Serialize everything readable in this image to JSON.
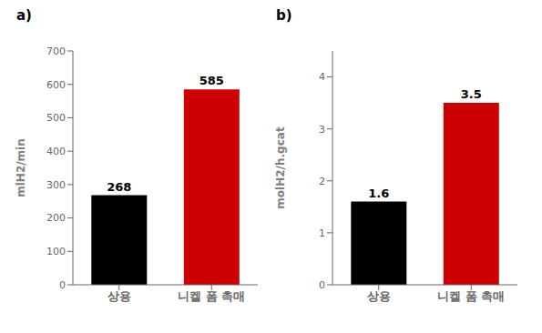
{
  "chart_data": [
    {
      "type": "bar",
      "title": "a)",
      "categories": [
        "상용",
        "니켈 폼 촉매"
      ],
      "values": [
        268,
        585
      ],
      "colors": [
        "#000000",
        "#cc0000"
      ],
      "ylabel": "mlH2/min",
      "ylim": [
        0,
        700
      ],
      "yticks": [
        0,
        100,
        200,
        300,
        400,
        500,
        600,
        700
      ],
      "data_labels": true
    },
    {
      "type": "bar",
      "title": "b)",
      "categories": [
        "상용",
        "니켈 폼 촉매"
      ],
      "values": [
        1.6,
        3.5
      ],
      "colors": [
        "#000000",
        "#cc0000"
      ],
      "ylabel": "molH2/h.gcat",
      "ylim": [
        0,
        4.5
      ],
      "yticks": [
        0,
        1,
        2,
        3,
        4
      ],
      "data_labels": true
    }
  ]
}
